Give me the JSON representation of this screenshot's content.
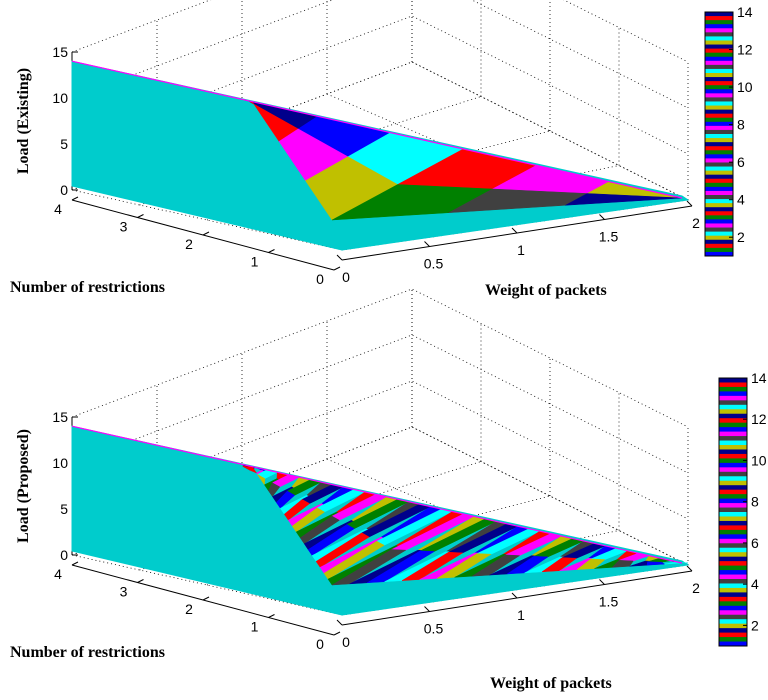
{
  "chart_data": [
    {
      "type": "surface",
      "zlabel": "Load (Existing)",
      "xlabel": "Weight of packets",
      "ylabel": "Number of restrictions",
      "xlim": [
        0,
        2
      ],
      "ylim": [
        0,
        4
      ],
      "zlim": [
        0,
        15
      ],
      "x_ticks": [
        "0",
        "0.5",
        "1",
        "1.5",
        "2"
      ],
      "y_ticks": [
        "0",
        "1",
        "2",
        "3",
        "4"
      ],
      "z_ticks": [
        "0",
        "5",
        "10",
        "15"
      ],
      "grid": true,
      "colorbar": {
        "ticks": [
          "2",
          "4",
          "6",
          "8",
          "10",
          "12",
          "14"
        ],
        "range": [
          1,
          14
        ]
      },
      "stripe_count": 6,
      "surface_points": [
        {
          "x": 0,
          "y": 4,
          "z": 14
        },
        {
          "x": 0,
          "y": 0,
          "z": 0
        },
        {
          "x": 2,
          "y": 0,
          "z": 0
        },
        {
          "x": 2,
          "y": 4,
          "z": 0
        }
      ]
    },
    {
      "type": "surface",
      "zlabel": "Load (Proposed)",
      "xlabel": "Weight of packets",
      "ylabel": "Number of restrictions",
      "xlim": [
        0,
        2
      ],
      "ylim": [
        0,
        4
      ],
      "zlim": [
        0,
        15
      ],
      "x_ticks": [
        "0",
        "0.5",
        "1",
        "1.5",
        "2"
      ],
      "y_ticks": [
        "0",
        "1",
        "2",
        "3",
        "4"
      ],
      "z_ticks": [
        "0",
        "5",
        "10",
        "15"
      ],
      "grid": true,
      "colorbar": {
        "ticks": [
          "2",
          "4",
          "6",
          "8",
          "10",
          "12",
          "14"
        ],
        "range": [
          1,
          14
        ]
      },
      "stripe_count": 40,
      "surface_points": [
        {
          "x": 0,
          "y": 4,
          "z": 14
        },
        {
          "x": 0,
          "y": 0,
          "z": 0
        },
        {
          "x": 2,
          "y": 0,
          "z": 0
        },
        {
          "x": 2,
          "y": 4,
          "z": 0
        }
      ]
    }
  ],
  "palette": [
    "#00008b",
    "#0000ff",
    "#00ffff",
    "#ff0000",
    "#ff00ff",
    "#c0c000",
    "#008000",
    "#404040"
  ],
  "base_color": "#00cccc"
}
